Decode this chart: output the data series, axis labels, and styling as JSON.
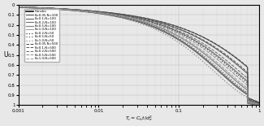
{
  "title": "",
  "xlabel": "$T_r=C_h t/d_e^2$",
  "ylabel": "U",
  "xlim": [
    0.001,
    1.0
  ],
  "ylim": [
    0.0,
    1.0
  ],
  "bg_color": "#e8e8e8",
  "yticks": [
    0,
    0.1,
    0.2,
    0.3,
    0.4,
    0.5,
    0.6,
    0.7,
    0.8,
    0.9,
    1.0
  ],
  "ytick_labels": [
    "0",
    "0.1",
    "0.2",
    "0.3",
    "0.4",
    "0.5",
    "0.6",
    "0.7",
    "0.8",
    "0.9",
    "1"
  ],
  "legend_entries": [
    {
      "label": "Hansbo",
      "K": null,
      "N": null,
      "ls": "solid",
      "color": "#111111",
      "lw": 1.2
    },
    {
      "label": "K=0.05,N=100",
      "K": 0.05,
      "N": 100,
      "ls": "solid",
      "color": "#444444",
      "lw": 0.7
    },
    {
      "label": "K=0.1,N=100",
      "K": 0.1,
      "N": 100,
      "ls": "solid",
      "color": "#555555",
      "lw": 0.7
    },
    {
      "label": "K=0.2,N=100",
      "K": 0.2,
      "N": 100,
      "ls": "solid",
      "color": "#666666",
      "lw": 0.7
    },
    {
      "label": "K=0.5,N=100",
      "K": 0.5,
      "N": 100,
      "ls": "solid",
      "color": "#888888",
      "lw": 0.9
    },
    {
      "label": "K=1.0,N=100",
      "K": 1.0,
      "N": 100,
      "ls": "solid",
      "color": "#999999",
      "lw": 0.7
    },
    {
      "label": "K=0.2,N=50",
      "K": 0.2,
      "N": 50,
      "ls": "dotted",
      "color": "#444444",
      "lw": 0.9
    },
    {
      "label": "K=0.5,N=50",
      "K": 0.5,
      "N": 50,
      "ls": "dotted",
      "color": "#666666",
      "lw": 0.9
    },
    {
      "label": "K=1.0,N=50",
      "K": 1.0,
      "N": 50,
      "ls": "dotted",
      "color": "#888888",
      "lw": 0.9
    },
    {
      "label": "K=0.05,N=500",
      "K": 0.05,
      "N": 500,
      "ls": "dashed",
      "color": "#444444",
      "lw": 0.7
    },
    {
      "label": "K=0.1,N=500",
      "K": 0.1,
      "N": 500,
      "ls": "dashed",
      "color": "#555555",
      "lw": 0.7
    },
    {
      "label": "K=0.2,N=500",
      "K": 0.2,
      "N": 500,
      "ls": "dashed",
      "color": "#666666",
      "lw": 0.7
    },
    {
      "label": "K=0.5,N=500",
      "K": 0.5,
      "N": 500,
      "ls": "dashed",
      "color": "#888888",
      "lw": 0.7
    },
    {
      "label": "K=1.0,N=500",
      "K": 1.0,
      "N": 500,
      "ls": "dashed",
      "color": "#999999",
      "lw": 0.7
    }
  ]
}
